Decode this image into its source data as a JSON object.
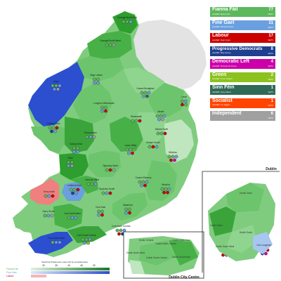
{
  "legend": {
    "parties": [
      {
        "name": "Fianna Fáil",
        "leader": "LEADER: Bertie Ahern",
        "seats": "77",
        "seats_label": "SEATS",
        "color": "#5cb85c"
      },
      {
        "name": "Fine Gael",
        "leader": "LEADER: Michael Noonan",
        "seats": "31",
        "seats_label": "SEATS",
        "color": "#6a9fe0"
      },
      {
        "name": "Labour",
        "leader": "LEADER: Ruairi Quinn",
        "seats": "17",
        "seats_label": "SEATS",
        "color": "#cc0000"
      },
      {
        "name": "Progressive Democrats",
        "leader": "LEADER: Mary Harney",
        "seats": "8",
        "seats_label": "SEATS",
        "color": "#1f3f8f"
      },
      {
        "name": "Democratic Left",
        "leader": "LEADER: Proinsias De Rossa",
        "seats": "4",
        "seats_label": "SEATS",
        "color": "#cc00aa"
      },
      {
        "name": "Green",
        "leader": "LEADER: Trevor Sargent",
        "seats": "2",
        "seats_label": "SEATS",
        "color": "#8bc21e"
      },
      {
        "name": "Sinn Féin",
        "leader": "LEADER: Gerry Adams",
        "seats": "1",
        "seats_label": "SEATS",
        "color": "#2f6a56"
      },
      {
        "name": "Socialist",
        "leader": "LEADER: Joe Higgins",
        "seats": "1",
        "seats_label": "SEATS",
        "color": "#ff4400"
      },
      {
        "name": "Independent",
        "leader": "",
        "seats": "6",
        "seats_label": "SEATS",
        "color": "#a0a0a0"
      }
    ]
  },
  "constituencies": [
    {
      "name": "Donegal North East",
      "shade": "#2e9e2e",
      "seats": [
        "#5cb85c",
        "#5cb85c",
        "#6a9fe0"
      ]
    },
    {
      "name": "Donegal South West",
      "shade": "#47b047",
      "seats": [
        "#5cb85c",
        "#5cb85c",
        "#a0a0a0"
      ]
    },
    {
      "name": "Sligo Leitrim",
      "shade": "#6cc46c",
      "seats": [
        "#5cb85c",
        "#5cb85c",
        "#6a9fe0",
        "#6a9fe0"
      ]
    },
    {
      "name": "Cavan Monaghan",
      "shade": "#7fcc7f",
      "seats": [
        "#5cb85c",
        "#5cb85c",
        "#6a9fe0",
        "#6a9fe0",
        "#2f6a56"
      ]
    },
    {
      "name": "Louth",
      "shade": "#7fcc7f",
      "seats": [
        "#5cb85c",
        "#6a9fe0",
        "#cc0000",
        "#5cb85c"
      ]
    },
    {
      "name": "Mayo",
      "shade": "#2b4fcf",
      "seats": [
        "#5cb85c",
        "#5cb85c",
        "#6a9fe0",
        "#6a9fe0",
        "#a0a0a0"
      ]
    },
    {
      "name": "Roscommon",
      "shade": "#6cc46c",
      "seats": [
        "#5cb85c",
        "#6a9fe0",
        "#a0a0a0"
      ]
    },
    {
      "name": "Longford Westmeath",
      "shade": "#7fcc7f",
      "seats": [
        "#5cb85c",
        "#5cb85c",
        "#6a9fe0",
        "#cc0000"
      ]
    },
    {
      "name": "Meath",
      "shade": "#7fcc7f",
      "seats": [
        "#5cb85c",
        "#5cb85c",
        "#6a9fe0",
        "#6a9fe0",
        "#a0a0a0"
      ]
    },
    {
      "name": "Westmeath",
      "shade": "#6cc46c",
      "seats": [
        "#5cb85c",
        "#5cb85c",
        "#cc0000"
      ]
    },
    {
      "name": "Kildare North",
      "shade": "#8fd48f",
      "seats": [
        "#5cb85c",
        "#5cb85c",
        "#cc0000"
      ]
    },
    {
      "name": "Kildare South",
      "shade": "#8fd48f",
      "seats": [
        "#5cb85c",
        "#cc0000",
        "#6a9fe0"
      ]
    },
    {
      "name": "Galway West",
      "shade": "#6cc46c",
      "seats": [
        "#5cb85c",
        "#5cb85c",
        "#cc0000",
        "#1f3f8f",
        "#6a9fe0"
      ]
    },
    {
      "name": "Galway East",
      "shade": "#3aa43a",
      "seats": [
        "#5cb85c",
        "#5cb85c",
        "#6a9fe0",
        "#6a9fe0"
      ]
    },
    {
      "name": "Laois Offaly",
      "shade": "#47b047",
      "seats": [
        "#5cb85c",
        "#5cb85c",
        "#5cb85c",
        "#6a9fe0",
        "#cc0000"
      ]
    },
    {
      "name": "Wicklow",
      "shade": "#bfe6bf",
      "seats": [
        "#5cb85c",
        "#5cb85c",
        "#6a9fe0",
        "#cc0000",
        "#cc00aa"
      ]
    },
    {
      "name": "Clare",
      "shade": "#2e9e2e",
      "seats": [
        "#5cb85c",
        "#5cb85c",
        "#6a9fe0",
        "#a0a0a0"
      ]
    },
    {
      "name": "Tipperary North",
      "shade": "#6cc46c",
      "seats": [
        "#5cb85c",
        "#cc0000",
        "#a0a0a0"
      ]
    },
    {
      "name": "Carlow Kilkenny",
      "shade": "#7fcc7f",
      "seats": [
        "#5cb85c",
        "#5cb85c",
        "#6a9fe0",
        "#6a9fe0",
        "#cc0000"
      ]
    },
    {
      "name": "Limerick East",
      "shade": "#7fcc7f",
      "seats": [
        "#5cb85c",
        "#5cb85c",
        "#cc0000",
        "#1f3f8f",
        "#6a9fe0"
      ]
    },
    {
      "name": "Limerick West",
      "shade": "#6cc46c",
      "seats": [
        "#5cb85c",
        "#5cb85c",
        "#6a9fe0"
      ]
    },
    {
      "name": "Tipperary South",
      "shade": "#7fcc7f",
      "seats": [
        "#5cb85c",
        "#6a9fe0",
        "#cc0000"
      ]
    },
    {
      "name": "Wexford",
      "shade": "#6cc46c",
      "seats": [
        "#5cb85c",
        "#5cb85c",
        "#6a9fe0",
        "#cc0000",
        "#cc0000"
      ]
    },
    {
      "name": "Kerry North",
      "shade": "#f08080",
      "seats": [
        "#5cb85c",
        "#6a9fe0",
        "#cc0000"
      ]
    },
    {
      "name": "Waterford",
      "shade": "#6cc46c",
      "seats": [
        "#5cb85c",
        "#5cb85c",
        "#6a9fe0",
        "#cc0000"
      ]
    },
    {
      "name": "Kerry South",
      "shade": "#7fcc7f",
      "seats": [
        "#5cb85c",
        "#6a9fe0",
        "#a0a0a0"
      ]
    },
    {
      "name": "Cork North West",
      "shade": "#47b047",
      "seats": [
        "#5cb85c",
        "#6a9fe0",
        "#6a9fe0"
      ]
    },
    {
      "name": "Cork East",
      "shade": "#7fcc7f",
      "seats": [
        "#5cb85c",
        "#5cb85c",
        "#6a9fe0",
        "#cc0000"
      ]
    },
    {
      "name": "Cork North Central",
      "shade": "#6cc46c",
      "seats": [
        "#5cb85c",
        "#5cb85c",
        "#6a9fe0",
        "#cc0000",
        "#1f3f8f"
      ]
    },
    {
      "name": "Cork South Central",
      "shade": "#6cc46c",
      "seats": [
        "#5cb85c",
        "#5cb85c",
        "#6a9fe0",
        "#6a9fe0",
        "#8bc21e"
      ]
    },
    {
      "name": "Cork South West",
      "shade": "#47b047",
      "seats": [
        "#5cb85c",
        "#6a9fe0",
        "#6a9fe0"
      ]
    }
  ],
  "dublin_city_centre": {
    "title": "Dublin City Centre",
    "areas": [
      {
        "name": "Dublin Central",
        "seats": [
          "#5cb85c",
          "#5cb85c",
          "#cc0000",
          "#a0a0a0"
        ]
      },
      {
        "name": "Dublin North Central",
        "seats": [
          "#5cb85c",
          "#5cb85c",
          "#6a9fe0",
          "#a0a0a0"
        ]
      },
      {
        "name": "Dublin North East",
        "seats": [
          "#5cb85c",
          "#6a9fe0",
          "#cc0000"
        ]
      },
      {
        "name": "Dublin North West",
        "seats": [
          "#5cb85c",
          "#5cb85c",
          "#cc0000",
          "#cc00aa"
        ]
      },
      {
        "name": "Dublin South Central",
        "seats": [
          "#5cb85c",
          "#5cb85c",
          "#6a9fe0",
          "#cc0000",
          "#cc00aa"
        ]
      },
      {
        "name": "Dublin South East",
        "seats": [
          "#5cb85c",
          "#1f3f8f",
          "#8bc21e",
          "#cc0000"
        ]
      }
    ]
  },
  "dublin_region": {
    "title": "Dublin",
    "areas": [
      {
        "name": "Dublin North",
        "seats": [
          "#5cb85c",
          "#5cb85c",
          "#6a9fe0",
          "#8bc21e"
        ]
      },
      {
        "name": "Dublin West",
        "seats": [
          "#5cb85c",
          "#6a9fe0",
          "#ff4400",
          "#cc0000"
        ]
      },
      {
        "name": "Dublin South West",
        "seats": [
          "#5cb85c",
          "#6a9fe0",
          "#cc0000",
          "#cc00aa"
        ]
      },
      {
        "name": "Dublin South",
        "seats": [
          "#5cb85c",
          "#5cb85c",
          "#6a9fe0",
          "#6a9fe0",
          "#1f3f8f"
        ]
      },
      {
        "name": "Dún Laoghaire",
        "seats": [
          "#5cb85c",
          "#6a9fe0",
          "#cc0000",
          "#1f3f8f",
          "#cc00aa"
        ]
      },
      {
        "name": "Dublin Mid West",
        "seats": [
          "#5cb85c",
          "#6a9fe0",
          "#cc0000"
        ]
      }
    ]
  },
  "scale": {
    "title": "Total First Preference votes (%) by constituencies",
    "ticks": [
      "30",
      "35",
      "40",
      "45",
      "50"
    ],
    "rows": [
      {
        "name": "Fianna Fáil",
        "color": "#5cb85c",
        "light": "#dff2df",
        "dark": "#1e7a1e"
      },
      {
        "name": "Fine Gael",
        "color": "#6a9fe0",
        "light": "#dde9f9",
        "dark": "#2b4fcf"
      },
      {
        "name": "Labour",
        "color": "#cc0000",
        "light": "#f8d7d7",
        "dark": "#aa0000"
      }
    ]
  },
  "colors": {
    "northern_ireland": "#e3e3e3",
    "sea": "#ffffff"
  }
}
